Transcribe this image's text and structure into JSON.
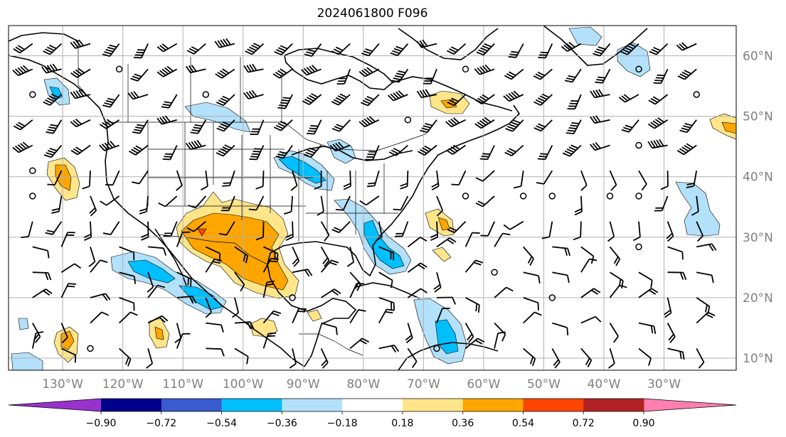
{
  "title": "2024061800 F096",
  "map": {
    "lon_range": [
      -139,
      -18
    ],
    "lat_range": [
      8,
      65
    ],
    "lon_ticks": [
      {
        "value": -130,
        "label": "130°W"
      },
      {
        "value": -120,
        "label": "120°W"
      },
      {
        "value": -110,
        "label": "110°W"
      },
      {
        "value": -100,
        "label": "100°W"
      },
      {
        "value": -90,
        "label": "90°W"
      },
      {
        "value": -80,
        "label": "80°W"
      },
      {
        "value": -70,
        "label": "70°W"
      },
      {
        "value": -60,
        "label": "60°W"
      },
      {
        "value": -50,
        "label": "50°W"
      },
      {
        "value": -40,
        "label": "40°W"
      },
      {
        "value": -30,
        "label": "30°W"
      }
    ],
    "lat_ticks": [
      {
        "value": 10,
        "label": "10°N"
      },
      {
        "value": 20,
        "label": "20°N"
      },
      {
        "value": 30,
        "label": "30°N"
      },
      {
        "value": 40,
        "label": "40°N"
      },
      {
        "value": 50,
        "label": "50°N"
      },
      {
        "value": 60,
        "label": "60°N"
      }
    ],
    "grid": true,
    "fill_colors": {
      "neg_light": "#b3e0fa",
      "neg_mid": "#00bfff",
      "pos_light": "#ffe58a",
      "pos_mid": "#ffa500",
      "pos_high": "#ff4500"
    }
  },
  "colorbar": {
    "levels": [
      "−0.90",
      "−0.72",
      "−0.54",
      "−0.36",
      "−0.18",
      "0.18",
      "0.36",
      "0.54",
      "0.72",
      "0.90"
    ],
    "colors": [
      "#9932cc",
      "#00008b",
      "#3a5bcf",
      "#00bfff",
      "#b3e0fa",
      "#ffffff",
      "#ffe58a",
      "#ffa500",
      "#ff4500",
      "#b22222",
      "#ff80b0"
    ]
  }
}
